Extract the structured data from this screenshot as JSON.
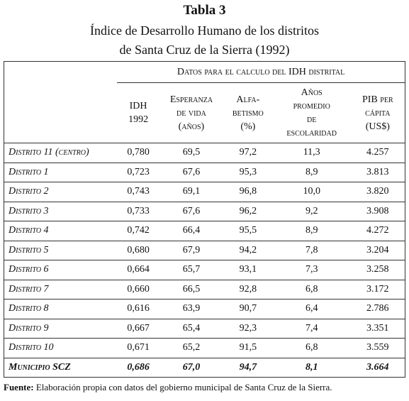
{
  "title": "Tabla 3",
  "subtitle": [
    "Índice de Desarrollo Humano de los distritos",
    "de Santa Cruz de la Sierra (1992)"
  ],
  "table": {
    "group_header": "Datos para el calculo del IDH distrital",
    "columns": [
      [
        "IDH",
        "1992"
      ],
      [
        "Esperanza",
        "de vida",
        "(años)"
      ],
      [
        "Alfa-",
        "betismo",
        "(%)"
      ],
      [
        "Años",
        "promedio",
        "de",
        "escolaridad"
      ],
      [
        "PIB per",
        "cápita",
        "(US$)"
      ]
    ],
    "rows": [
      [
        "Distrito 11 (centro)",
        "0,780",
        "69,5",
        "97,2",
        "11,3",
        "4.257"
      ],
      [
        "Distrito 1",
        "0,723",
        "67,6",
        "95,3",
        "8,9",
        "3.813"
      ],
      [
        "Distrito 2",
        "0,743",
        "69,1",
        "96,8",
        "10,0",
        "3.820"
      ],
      [
        "Distrito 3",
        "0,733",
        "67,6",
        "96,2",
        "9,2",
        "3.908"
      ],
      [
        "Distrito 4",
        "0,742",
        "66,4",
        "95,5",
        "8,9",
        "4.272"
      ],
      [
        "Distrito 5",
        "0,680",
        "67,9",
        "94,2",
        "7,8",
        "3.204"
      ],
      [
        "Distrito 6",
        "0,664",
        "65,7",
        "93,1",
        "7,3",
        "3.258"
      ],
      [
        "Distrito 7",
        "0,660",
        "66,5",
        "92,8",
        "6,8",
        "3.172"
      ],
      [
        "Distrito 8",
        "0,616",
        "63,9",
        "90,7",
        "6,4",
        "2.786"
      ],
      [
        "Distrito 9",
        "0,667",
        "65,4",
        "92,3",
        "7,4",
        "3.351"
      ],
      [
        "Distrito 10",
        "0,671",
        "65,2",
        "91,5",
        "6,8",
        "3.559"
      ]
    ],
    "total": [
      "Municipio SCZ",
      "0,686",
      "67,0",
      "94,7",
      "8,1",
      "3.664"
    ]
  },
  "source": {
    "label": "Fuente:",
    "text": "Elaboración propia con datos del gobierno municipal de Santa Cruz de la Sierra."
  }
}
